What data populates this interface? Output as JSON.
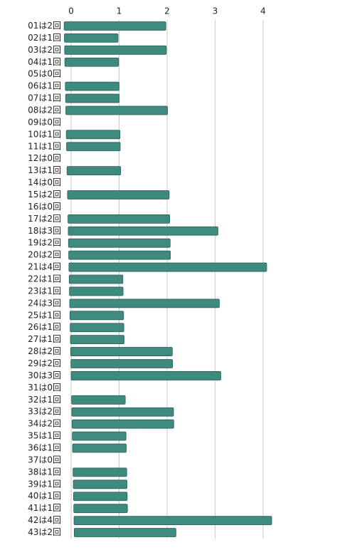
{
  "chart_data": {
    "type": "bar",
    "orientation": "horizontal",
    "categories": [
      "01は2回",
      "02は1回",
      "03は2回",
      "04は1回",
      "05は0回",
      "06は1回",
      "07は1回",
      "08は2回",
      "09は0回",
      "10は1回",
      "11は1回",
      "12は0回",
      "13は1回",
      "14は0回",
      "15は2回",
      "16は0回",
      "17は2回",
      "18は3回",
      "19は2回",
      "20は2回",
      "21は4回",
      "22は1回",
      "23は1回",
      "24は3回",
      "25は1回",
      "26は1回",
      "27は1回",
      "28は2回",
      "29は2回",
      "30は3回",
      "31は0回",
      "32は1回",
      "33は2回",
      "34は2回",
      "35は1回",
      "36は1回",
      "37は0回",
      "38は1回",
      "39は1回",
      "40は1回",
      "41は1回",
      "42は4回",
      "43は2回"
    ],
    "values": [
      2,
      1,
      2,
      1,
      0,
      1,
      1,
      2,
      0,
      1,
      1,
      0,
      1,
      0,
      2,
      0,
      2,
      3,
      2,
      2,
      4,
      1,
      1,
      3,
      1,
      1,
      1,
      2,
      2,
      3,
      0,
      1,
      2,
      2,
      1,
      1,
      0,
      1,
      1,
      1,
      1,
      4,
      2
    ],
    "color": "#3f8a7f",
    "xlim": [
      0,
      4
    ],
    "xticks": [
      0,
      1,
      2,
      3,
      4
    ],
    "grid": true
  }
}
